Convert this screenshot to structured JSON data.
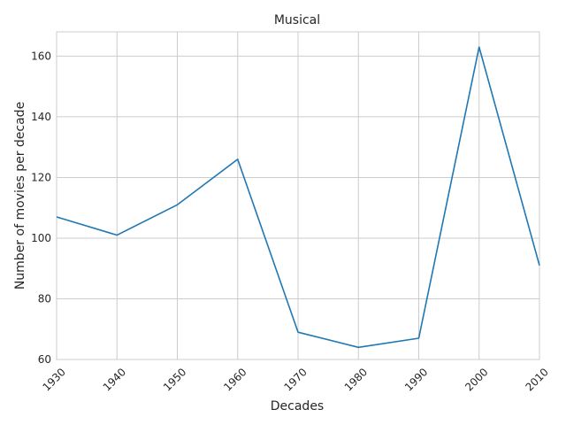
{
  "chart_data": {
    "type": "line",
    "title": "Musical",
    "xlabel": "Decades",
    "ylabel": "Number of movies per decade",
    "x": [
      "1930",
      "1940",
      "1950",
      "1960",
      "1970",
      "1980",
      "1990",
      "2000",
      "2010"
    ],
    "series": [
      {
        "values": [
          107,
          101,
          111,
          126,
          69,
          64,
          67,
          163,
          91
        ]
      }
    ],
    "xlim": [
      1930,
      2010
    ],
    "ylim": [
      60,
      168
    ],
    "yticks": [
      "60",
      "80",
      "100",
      "120",
      "140",
      "160"
    ],
    "grid": true,
    "legend": "none",
    "line_color": "#1f77b4"
  }
}
